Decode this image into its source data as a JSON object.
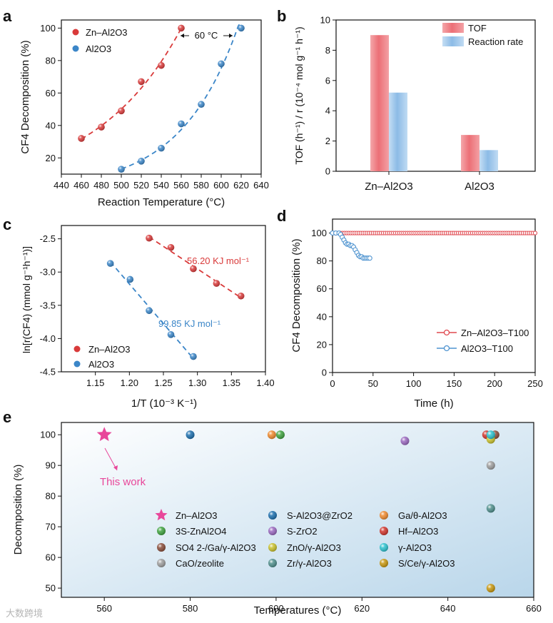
{
  "watermark": "大数跨境",
  "chart_data": [
    {
      "panel": "a",
      "type": "scatter",
      "xlabel": "Reaction Temperature (°C)",
      "ylabel": "CF4 Decomposition (%)",
      "xlim": [
        440,
        640
      ],
      "ylim": [
        10,
        105
      ],
      "xticks": [
        440,
        460,
        480,
        500,
        520,
        540,
        560,
        580,
        600,
        620,
        640
      ],
      "yticks": [
        20,
        40,
        60,
        80,
        100
      ],
      "legend_position": "top-left",
      "annotation": "60 °C",
      "series": [
        {
          "name": "Zn–Al2O3",
          "color": "#d93a3a",
          "x": [
            460,
            480,
            500,
            520,
            540,
            560
          ],
          "y": [
            32,
            39,
            49,
            67,
            77,
            100
          ]
        },
        {
          "name": "Al2O3",
          "color": "#3b86c8",
          "x": [
            500,
            520,
            540,
            560,
            580,
            600,
            620
          ],
          "y": [
            13,
            18,
            26,
            41,
            53,
            78,
            100
          ]
        }
      ]
    },
    {
      "panel": "b",
      "type": "bar",
      "ylabel": "TOF (h⁻¹) / r (10⁻⁴ mol g⁻¹ h⁻¹)",
      "ylim": [
        0,
        10
      ],
      "yticks": [
        0,
        2,
        4,
        6,
        8,
        10
      ],
      "categories": [
        "Zn–Al2O3",
        "Al2O3"
      ],
      "legend_position": "top-right",
      "series": [
        {
          "name": "TOF",
          "color": "#f07c82",
          "values": [
            9.0,
            2.4
          ]
        },
        {
          "name": "Reaction rate",
          "color": "#8dbde8",
          "values": [
            5.2,
            1.4
          ]
        }
      ]
    },
    {
      "panel": "c",
      "type": "scatter",
      "xlabel": "1/T (10⁻³ K⁻¹)",
      "ylabel": "ln[r(CF4) (mmol g⁻¹h⁻¹)]",
      "xlim": [
        1.1,
        1.4
      ],
      "ylim": [
        -4.5,
        -2.3
      ],
      "xticks": [
        1.15,
        1.2,
        1.25,
        1.3,
        1.35,
        1.4
      ],
      "yticks": [
        -2.5,
        -3.0,
        -3.5,
        -4.0,
        -4.5
      ],
      "legend_position": "bottom-left",
      "annotations": [
        "56.20 KJ mol⁻¹",
        "99.85 KJ mol⁻¹"
      ],
      "series": [
        {
          "name": "Zn–Al2O3",
          "color": "#d93a3a",
          "x": [
            1.229,
            1.261,
            1.294,
            1.328,
            1.364
          ],
          "y": [
            -2.49,
            -2.63,
            -2.95,
            -3.17,
            -3.36
          ]
        },
        {
          "name": "Al2O3",
          "color": "#3b86c8",
          "x": [
            1.172,
            1.201,
            1.229,
            1.261,
            1.294
          ],
          "y": [
            -2.87,
            -3.11,
            -3.58,
            -3.94,
            -4.27
          ]
        }
      ]
    },
    {
      "panel": "d",
      "type": "line",
      "xlabel": "Time (h)",
      "ylabel": "CF4 Decomposition (%)",
      "xlim": [
        0,
        250
      ],
      "ylim": [
        0,
        110
      ],
      "xticks": [
        0,
        50,
        100,
        150,
        200,
        250
      ],
      "yticks": [
        0,
        20,
        40,
        60,
        80,
        100
      ],
      "legend_position": "bottom-right",
      "series": [
        {
          "name": "Zn–Al2O3–T100",
          "color": "#e0484f",
          "x": [
            0,
            50,
            100,
            150,
            200,
            250
          ],
          "y": [
            100,
            100,
            100,
            100,
            100,
            100
          ]
        },
        {
          "name": "Al2O3–T100",
          "color": "#4f94d0",
          "x": [
            0,
            4,
            8,
            10,
            12,
            14,
            16,
            18,
            20,
            22,
            24,
            26,
            28,
            30,
            32,
            34,
            36,
            38,
            40,
            42,
            44,
            46
          ],
          "y": [
            100,
            100,
            100,
            99,
            97,
            95,
            93,
            92,
            92,
            91,
            91,
            90,
            88,
            86,
            84,
            83,
            83,
            82,
            82,
            82,
            82,
            82
          ]
        }
      ]
    },
    {
      "panel": "e",
      "type": "scatter",
      "xlabel": "Temperatures (°C)",
      "ylabel": "Decomposition (%)",
      "xlim": [
        550,
        660
      ],
      "ylim": [
        47,
        104
      ],
      "xticks": [
        560,
        580,
        600,
        620,
        640,
        660
      ],
      "yticks": [
        50,
        60,
        70,
        80,
        90,
        100
      ],
      "annotation": "This work",
      "legend_position": "center",
      "points": [
        {
          "name": "Zn–Al2O3",
          "marker": "star",
          "color": "#e8479a",
          "x": 560,
          "y": 100
        },
        {
          "name": "S-Al2O3@ZrO2",
          "color": "#1c6fae",
          "x": 580,
          "y": 100
        },
        {
          "name": "Ga/θ-Al2O3",
          "color": "#ef8a2e",
          "x": 599,
          "y": 100
        },
        {
          "name": "3S-ZnAl2O4",
          "color": "#3fa33f",
          "x": 601,
          "y": 100
        },
        {
          "name": "S-ZrO2",
          "color": "#9a68c0",
          "x": 630,
          "y": 98
        },
        {
          "name": "Hf–Al2O3",
          "color": "#d0342c",
          "x": 649,
          "y": 100
        },
        {
          "name": "SO4 2-/Ga/γ-Al2O3",
          "color": "#8a4d3a",
          "x": 651,
          "y": 100
        },
        {
          "name": "ZnO/γ-Al2O3",
          "color": "#c9c12c",
          "x": 650,
          "y": 98.5
        },
        {
          "name": "γ-Al2O3",
          "color": "#2cc2cf",
          "x": 650,
          "y": 100
        },
        {
          "name": "CaO/zeolite",
          "color": "#9e9e9e",
          "x": 650,
          "y": 90
        },
        {
          "name": "Zr/γ-Al2O3",
          "color": "#4f8f8c",
          "x": 650,
          "y": 76
        },
        {
          "name": "S/Ce/γ-Al2O3",
          "color": "#c7970f",
          "x": 650,
          "y": 50
        }
      ]
    }
  ]
}
